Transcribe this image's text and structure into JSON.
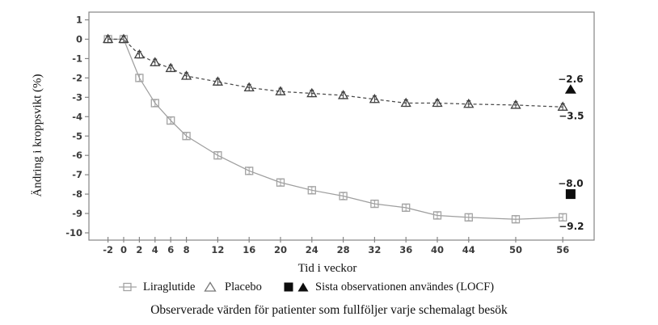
{
  "chart_data": {
    "type": "line",
    "title": "",
    "xlabel": "Tid i veckor",
    "ylabel": "Ändring i kroppsvikt (%)",
    "caption": "Observerade värden för patienter som fullföljer varje schemalagt besök",
    "x_ticks": [
      -2,
      0,
      2,
      4,
      6,
      8,
      12,
      16,
      20,
      24,
      28,
      32,
      36,
      40,
      44,
      50,
      56
    ],
    "y_ticks": [
      1,
      0,
      -1,
      -2,
      -3,
      -4,
      -5,
      -6,
      -7,
      -8,
      -9,
      -10
    ],
    "xlim": [
      -4.4,
      60
    ],
    "ylim": [
      -10.4,
      1.4
    ],
    "grid": false,
    "legend_position": "bottom",
    "weeks": [
      -2,
      0,
      2,
      4,
      6,
      8,
      12,
      16,
      20,
      24,
      28,
      32,
      36,
      40,
      44,
      50,
      56
    ],
    "series": [
      {
        "name": "Liraglutide",
        "marker": "square",
        "line": "solid",
        "line_color": "#9e9e9e",
        "marker_color": "#a3a3a3",
        "error": 0.17,
        "values": [
          0,
          0,
          -2.0,
          -3.3,
          -4.2,
          -5.0,
          -6.0,
          -6.8,
          -7.4,
          -7.8,
          -8.1,
          -8.5,
          -8.7,
          -9.1,
          -9.2,
          -9.3,
          -9.2
        ],
        "final_label": "−9.2"
      },
      {
        "name": "Placebo",
        "marker": "triangle",
        "line": "dashed",
        "line_color": "#4a4a4a",
        "marker_color": "#3f3f3f",
        "error": 0.17,
        "values": [
          0,
          0,
          -0.8,
          -1.2,
          -1.5,
          -1.9,
          -2.2,
          -2.5,
          -2.7,
          -2.8,
          -2.9,
          -3.1,
          -3.3,
          -3.3,
          -3.35,
          -3.4,
          -3.5
        ],
        "final_label": "−3.5"
      }
    ],
    "locf": {
      "week": 57,
      "legend_label": "Sista observationen användes (LOCF)",
      "points": [
        {
          "series": "Placebo",
          "marker": "triangle",
          "value": -2.6,
          "label": "−2.6"
        },
        {
          "series": "Liraglutide",
          "marker": "square",
          "value": -8.0,
          "label": "−8.0"
        }
      ]
    },
    "colors": {
      "frame": "#858585",
      "tick_text": "#3b3b3b",
      "annotation_text": "#1c1c1c",
      "locf_marker": "#0d0d0d"
    }
  },
  "legend": {
    "liraglutide": "Liraglutide",
    "placebo": "Placebo",
    "locf": "Sista observationen användes (LOCF)"
  }
}
